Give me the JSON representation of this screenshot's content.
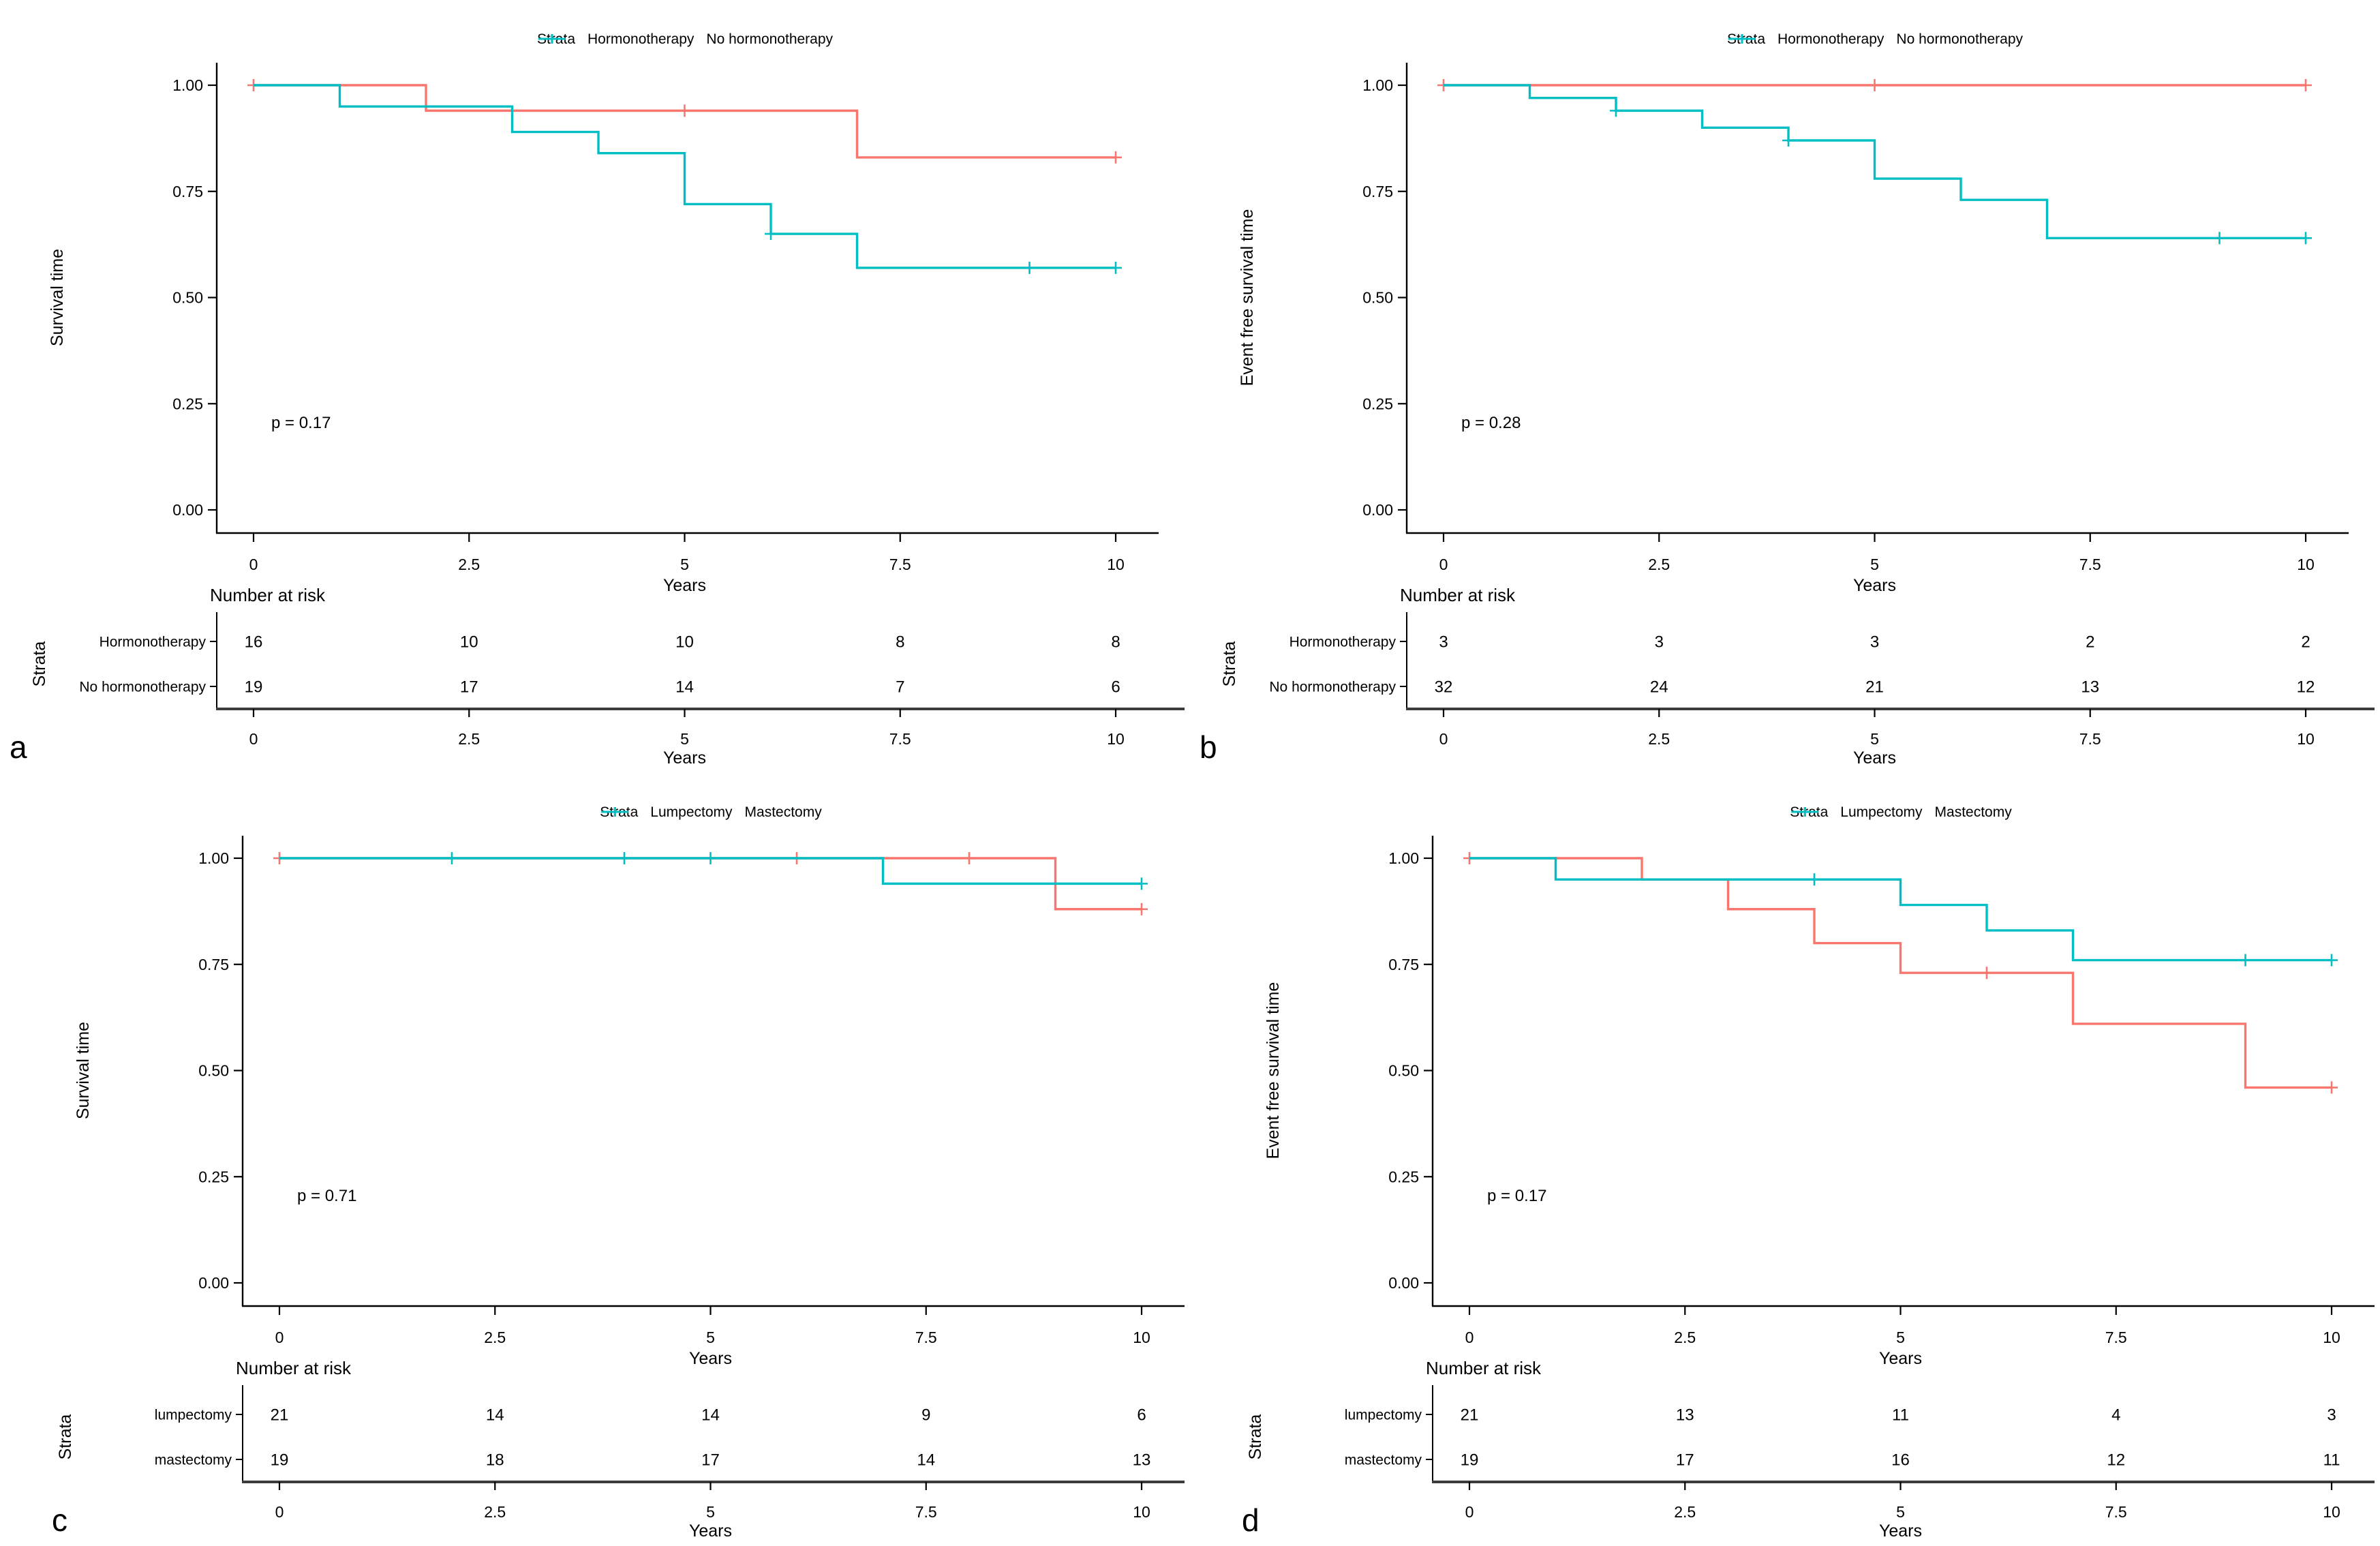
{
  "colors": {
    "red": "#F8766D",
    "teal": "#00BFC4",
    "axis": "#000000",
    "risk_axis": "#3c3c3c"
  },
  "chart_data": [
    {
      "type": "line",
      "subtype": "kaplan-meier-step",
      "panel_label": "a",
      "grid_area": "a",
      "legend_title": "Strata",
      "ylabel": "Survival time",
      "xlabel": "Years",
      "p_text": "p = 0.17",
      "x_ticks": [
        "0",
        "2.5",
        "5",
        "7.5",
        "10"
      ],
      "y_ticks": [
        "1.00",
        "0.75",
        "0.50",
        "0.25",
        "0.00"
      ],
      "xlim": [
        0,
        10
      ],
      "ylim": [
        0,
        1
      ],
      "legend_position": "top",
      "grid": false,
      "risk_table": {
        "title": "Number at risk",
        "axis_label": "Strata",
        "xlabel": "Years"
      },
      "series": [
        {
          "name": "Hormonotherapy",
          "risk_label": "Hormonotherapy",
          "color_key": "red",
          "points": [
            [
              0,
              1.0
            ],
            [
              2,
              1.0
            ],
            [
              2,
              0.94
            ],
            [
              7,
              0.94
            ],
            [
              7,
              0.83
            ],
            [
              10,
              0.83
            ]
          ],
          "censors": [
            [
              0,
              1.0
            ],
            [
              5,
              0.94
            ],
            [
              10,
              0.83
            ]
          ],
          "at_risk": [
            16,
            10,
            10,
            8,
            8
          ]
        },
        {
          "name": "No hormonotherapy",
          "risk_label": "No hormonotherapy",
          "color_key": "teal",
          "points": [
            [
              0,
              1.0
            ],
            [
              1,
              1.0
            ],
            [
              1,
              0.95
            ],
            [
              3,
              0.95
            ],
            [
              3,
              0.89
            ],
            [
              4,
              0.89
            ],
            [
              4,
              0.84
            ],
            [
              5,
              0.84
            ],
            [
              5,
              0.72
            ],
            [
              6,
              0.72
            ],
            [
              6,
              0.65
            ],
            [
              7,
              0.65
            ],
            [
              7,
              0.57
            ],
            [
              10,
              0.57
            ]
          ],
          "censors": [
            [
              6,
              0.65
            ],
            [
              9,
              0.57
            ],
            [
              10,
              0.57
            ]
          ],
          "at_risk": [
            19,
            17,
            14,
            7,
            6
          ]
        }
      ]
    },
    {
      "type": "line",
      "subtype": "kaplan-meier-step",
      "panel_label": "b",
      "grid_area": "b",
      "legend_title": "Strata",
      "ylabel": "Event free survival time",
      "xlabel": "Years",
      "p_text": "p = 0.28",
      "x_ticks": [
        "0",
        "2.5",
        "5",
        "7.5",
        "10"
      ],
      "y_ticks": [
        "1.00",
        "0.75",
        "0.50",
        "0.25",
        "0.00"
      ],
      "xlim": [
        0,
        10
      ],
      "ylim": [
        0,
        1
      ],
      "legend_position": "top",
      "grid": false,
      "risk_table": {
        "title": "Number at risk",
        "axis_label": "Strata",
        "xlabel": "Years"
      },
      "series": [
        {
          "name": "Hormonotherapy",
          "risk_label": "Hormonotherapy",
          "color_key": "red",
          "points": [
            [
              0,
              1.0
            ],
            [
              10,
              1.0
            ]
          ],
          "censors": [
            [
              0,
              1.0
            ],
            [
              5,
              1.0
            ],
            [
              10,
              1.0
            ]
          ],
          "at_risk": [
            3,
            3,
            3,
            2,
            2
          ]
        },
        {
          "name": "No hormonotherapy",
          "risk_label": "No hormonotherapy",
          "color_key": "teal",
          "points": [
            [
              0,
              1.0
            ],
            [
              1,
              1.0
            ],
            [
              1,
              0.97
            ],
            [
              2,
              0.97
            ],
            [
              2,
              0.94
            ],
            [
              3,
              0.94
            ],
            [
              3,
              0.9
            ],
            [
              4,
              0.9
            ],
            [
              4,
              0.87
            ],
            [
              5,
              0.87
            ],
            [
              5,
              0.78
            ],
            [
              6,
              0.78
            ],
            [
              6,
              0.73
            ],
            [
              7,
              0.73
            ],
            [
              7,
              0.64
            ],
            [
              10,
              0.64
            ]
          ],
          "censors": [
            [
              2,
              0.94
            ],
            [
              4,
              0.87
            ],
            [
              9,
              0.64
            ],
            [
              10,
              0.64
            ]
          ],
          "at_risk": [
            32,
            24,
            21,
            13,
            12
          ]
        }
      ]
    },
    {
      "type": "line",
      "subtype": "kaplan-meier-step",
      "panel_label": "c",
      "grid_area": "c",
      "legend_title": "Strata",
      "ylabel": "Survival time",
      "xlabel": "Years",
      "p_text": "p = 0.71",
      "x_ticks": [
        "0",
        "2.5",
        "5",
        "7.5",
        "10"
      ],
      "y_ticks": [
        "1.00",
        "0.75",
        "0.50",
        "0.25",
        "0.00"
      ],
      "xlim": [
        0,
        10
      ],
      "ylim": [
        0,
        1
      ],
      "legend_position": "top",
      "grid": false,
      "risk_table": {
        "title": "Number at risk",
        "axis_label": "Strata",
        "xlabel": "Years"
      },
      "series": [
        {
          "name": "Lumpectomy",
          "risk_label": "lumpectomy",
          "color_key": "red",
          "points": [
            [
              0,
              1.0
            ],
            [
              9,
              1.0
            ],
            [
              9,
              0.88
            ],
            [
              10,
              0.88
            ]
          ],
          "censors": [
            [
              0,
              1.0
            ],
            [
              6,
              1.0
            ],
            [
              8,
              1.0
            ],
            [
              10,
              0.88
            ]
          ],
          "at_risk": [
            21,
            14,
            14,
            9,
            6
          ]
        },
        {
          "name": "Mastectomy",
          "risk_label": "mastectomy",
          "color_key": "teal",
          "points": [
            [
              0,
              1.0
            ],
            [
              7,
              1.0
            ],
            [
              7,
              0.94
            ],
            [
              10,
              0.94
            ]
          ],
          "censors": [
            [
              2,
              1.0
            ],
            [
              4,
              1.0
            ],
            [
              5,
              1.0
            ],
            [
              10,
              0.94
            ]
          ],
          "at_risk": [
            19,
            18,
            17,
            14,
            13
          ]
        }
      ]
    },
    {
      "type": "line",
      "subtype": "kaplan-meier-step",
      "panel_label": "d",
      "grid_area": "d",
      "legend_title": "Strata",
      "ylabel": "Event free survival time",
      "xlabel": "Years",
      "p_text": "p = 0.17",
      "x_ticks": [
        "0",
        "2.5",
        "5",
        "7.5",
        "10"
      ],
      "y_ticks": [
        "1.00",
        "0.75",
        "0.50",
        "0.25",
        "0.00"
      ],
      "xlim": [
        0,
        10
      ],
      "ylim": [
        0,
        1
      ],
      "legend_position": "top",
      "grid": false,
      "risk_table": {
        "title": "Number at risk",
        "axis_label": "Strata",
        "xlabel": "Years"
      },
      "series": [
        {
          "name": "Lumpectomy",
          "risk_label": "lumpectomy",
          "color_key": "red",
          "points": [
            [
              0,
              1.0
            ],
            [
              2,
              1.0
            ],
            [
              2,
              0.95
            ],
            [
              3,
              0.95
            ],
            [
              3,
              0.88
            ],
            [
              4,
              0.88
            ],
            [
              4,
              0.8
            ],
            [
              5,
              0.8
            ],
            [
              5,
              0.73
            ],
            [
              7,
              0.73
            ],
            [
              7,
              0.61
            ],
            [
              9,
              0.61
            ],
            [
              9,
              0.46
            ],
            [
              10,
              0.46
            ]
          ],
          "censors": [
            [
              0,
              1.0
            ],
            [
              6,
              0.73
            ],
            [
              10,
              0.46
            ]
          ],
          "at_risk": [
            21,
            13,
            11,
            4,
            3
          ]
        },
        {
          "name": "Mastectomy",
          "risk_label": "mastectomy",
          "color_key": "teal",
          "points": [
            [
              0,
              1.0
            ],
            [
              1,
              1.0
            ],
            [
              1,
              0.95
            ],
            [
              5,
              0.95
            ],
            [
              5,
              0.89
            ],
            [
              6,
              0.89
            ],
            [
              6,
              0.83
            ],
            [
              7,
              0.83
            ],
            [
              7,
              0.76
            ],
            [
              10,
              0.76
            ]
          ],
          "censors": [
            [
              4,
              0.95
            ],
            [
              9,
              0.76
            ],
            [
              10,
              0.76
            ]
          ],
          "at_risk": [
            19,
            17,
            16,
            12,
            11
          ]
        }
      ]
    }
  ]
}
